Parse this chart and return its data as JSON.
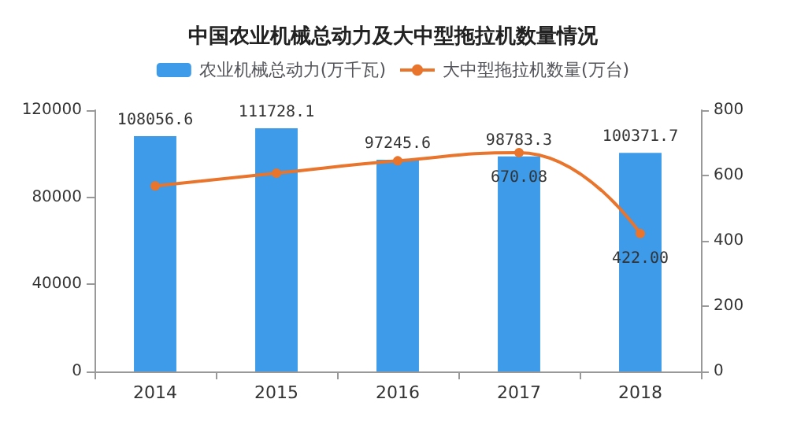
{
  "chart_data": {
    "type": "bar",
    "title": "中国农业机械总动力及大中型拖拉机数量情况",
    "categories": [
      "2014",
      "2015",
      "2016",
      "2017",
      "2018"
    ],
    "series": [
      {
        "name": "农业机械总动力(万千瓦)",
        "color": "#3d9be9",
        "values": [
          108056.6,
          111728.1,
          97245.6,
          98783.3,
          100371.7
        ],
        "value_labels": [
          "108056.6",
          "111728.1",
          "97245.6",
          "98783.3",
          "100371.7"
        ]
      },
      {
        "name": "大中型拖拉机数量(万台)",
        "type": "line",
        "axis": "y2",
        "color": "#e9742b",
        "values": [
          568,
          607,
          645,
          670.08,
          422
        ],
        "value_labels": [
          null,
          null,
          null,
          "670.08",
          "422.00"
        ]
      }
    ],
    "ylim": [
      0,
      120000
    ],
    "yticks": [
      0,
      40000,
      80000,
      120000
    ],
    "y2lim": [
      0,
      800
    ],
    "y2ticks": [
      0,
      200,
      400,
      600,
      800
    ],
    "legend": "top",
    "grid": false,
    "marker": "circle"
  }
}
